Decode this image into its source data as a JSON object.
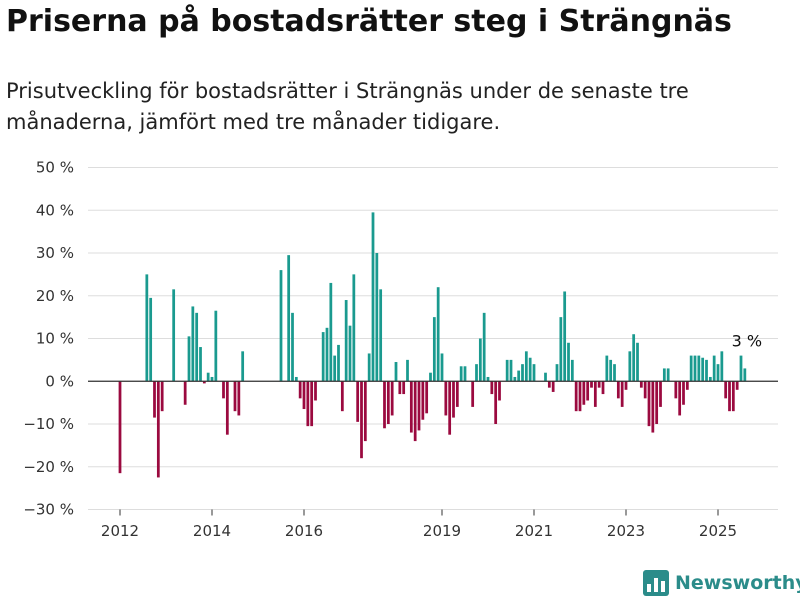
{
  "header": {
    "title": "Priserna på bostadsrätter steg i Strängnäs",
    "subtitle": "Prisutveckling för bostadsrätter i Strängnäs under de senaste tre månaderna, jämfört med tre månader tidigare."
  },
  "brand": {
    "name": "Newsworthy",
    "color": "#2b8c8a"
  },
  "colors": {
    "positive": "#1a9a8f",
    "negative": "#9b0a3f",
    "grid": "#dddddd",
    "zero_line": "#333333"
  },
  "chart_data": {
    "type": "bar",
    "ylim": [
      -30,
      50
    ],
    "y_ticks": [
      50,
      40,
      30,
      20,
      10,
      0,
      -10,
      -20,
      -30
    ],
    "y_tick_labels": [
      "50 %",
      "40 %",
      "30 %",
      "20 %",
      "10 %",
      "0 %",
      "−10 %",
      "−20 %",
      "−30 %"
    ],
    "x_ticks": [
      2012,
      2014,
      2016,
      2019,
      2021,
      2023,
      2025
    ],
    "x_tick_labels": [
      "2012",
      "2014",
      "2016",
      "2019",
      "2021",
      "2023",
      "2025"
    ],
    "start": "2012-01",
    "grid": true,
    "annotation": {
      "text": "3 %"
    },
    "series": [
      {
        "values": [
          -21.5,
          0,
          0,
          0,
          0,
          0,
          0,
          25,
          19.5,
          -8.5,
          -22.5,
          -7,
          0,
          0,
          21.5,
          0,
          0,
          -5.5,
          10.5,
          17.5,
          16,
          8,
          -0.5,
          2,
          1,
          16.5,
          0,
          -4,
          -12.5,
          0,
          -7,
          -8,
          7,
          0,
          0,
          0,
          0,
          0,
          0,
          0,
          0,
          0,
          26,
          0,
          29.5,
          16,
          1,
          -4,
          -6.5,
          -10.5,
          -10.5,
          -4.5,
          0,
          11.5,
          12.5,
          23,
          6,
          8.5,
          -7,
          19,
          13,
          25,
          -9.5,
          -18,
          -14,
          6.5,
          39.5,
          30,
          21.5,
          -11,
          -10,
          -8,
          4.5,
          -3,
          -3,
          5,
          -12,
          -14,
          -11.5,
          -9,
          -7.5,
          2,
          15,
          22,
          6.5,
          -8,
          -12.5,
          -8.5,
          -6,
          3.5,
          3.5,
          0,
          -6,
          4,
          10,
          16,
          1,
          -3,
          -10,
          -4.5,
          0,
          5,
          5,
          1,
          2.5,
          4,
          7,
          5.5,
          4,
          0,
          0,
          2,
          -1.5,
          -2.5,
          4,
          15,
          21,
          9,
          5,
          -7,
          -7,
          -5.5,
          -4.5,
          -1.5,
          -6,
          -1.5,
          -3,
          6,
          5,
          4,
          -4,
          -6,
          -2,
          7,
          11,
          9,
          -1.5,
          -4,
          -10.5,
          -12,
          -10,
          -6,
          3,
          3,
          0,
          -4,
          -8,
          -5.5,
          -2,
          6,
          6,
          6,
          5.5,
          5,
          1,
          6,
          4,
          7,
          -4,
          -7,
          -7,
          -2,
          6,
          3
        ]
      }
    ]
  }
}
